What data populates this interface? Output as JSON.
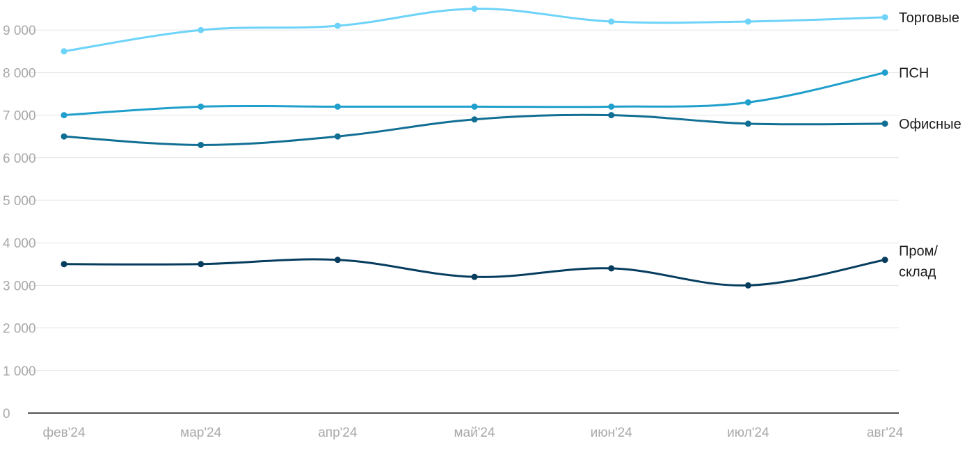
{
  "chart_data": {
    "type": "line",
    "categories": [
      "фев'24",
      "мар'24",
      "апр'24",
      "май'24",
      "июн'24",
      "июл'24",
      "авг'24"
    ],
    "ylim": [
      0,
      9500
    ],
    "yticks": [
      0,
      1000,
      2000,
      3000,
      4000,
      5000,
      6000,
      7000,
      8000,
      9000
    ],
    "ytick_labels": [
      "0",
      "1 000",
      "2 000",
      "3 000",
      "4 000",
      "5 000",
      "6 000",
      "7 000",
      "8 000",
      "9 000"
    ],
    "grid": true,
    "legend": "inline-right",
    "series": [
      {
        "name": "Торговые",
        "label_lines": [
          "Торговые"
        ],
        "color": "#6dd3f8",
        "values": [
          8500,
          9000,
          9100,
          9500,
          9200,
          9200,
          9300
        ]
      },
      {
        "name": "ПСН",
        "label_lines": [
          "ПСН"
        ],
        "color": "#1f9fcc",
        "values": [
          7000,
          7200,
          7200,
          7200,
          7200,
          7300,
          8000
        ]
      },
      {
        "name": "Офисные",
        "label_lines": [
          "Офисные"
        ],
        "color": "#116f94",
        "values": [
          6500,
          6300,
          6500,
          6900,
          7000,
          6800,
          6800
        ]
      },
      {
        "name": "Пром/склад",
        "label_lines": [
          "Пром/",
          "склад"
        ],
        "color": "#063d5e",
        "values": [
          3500,
          3500,
          3600,
          3200,
          3400,
          3000,
          3600
        ]
      }
    ]
  }
}
